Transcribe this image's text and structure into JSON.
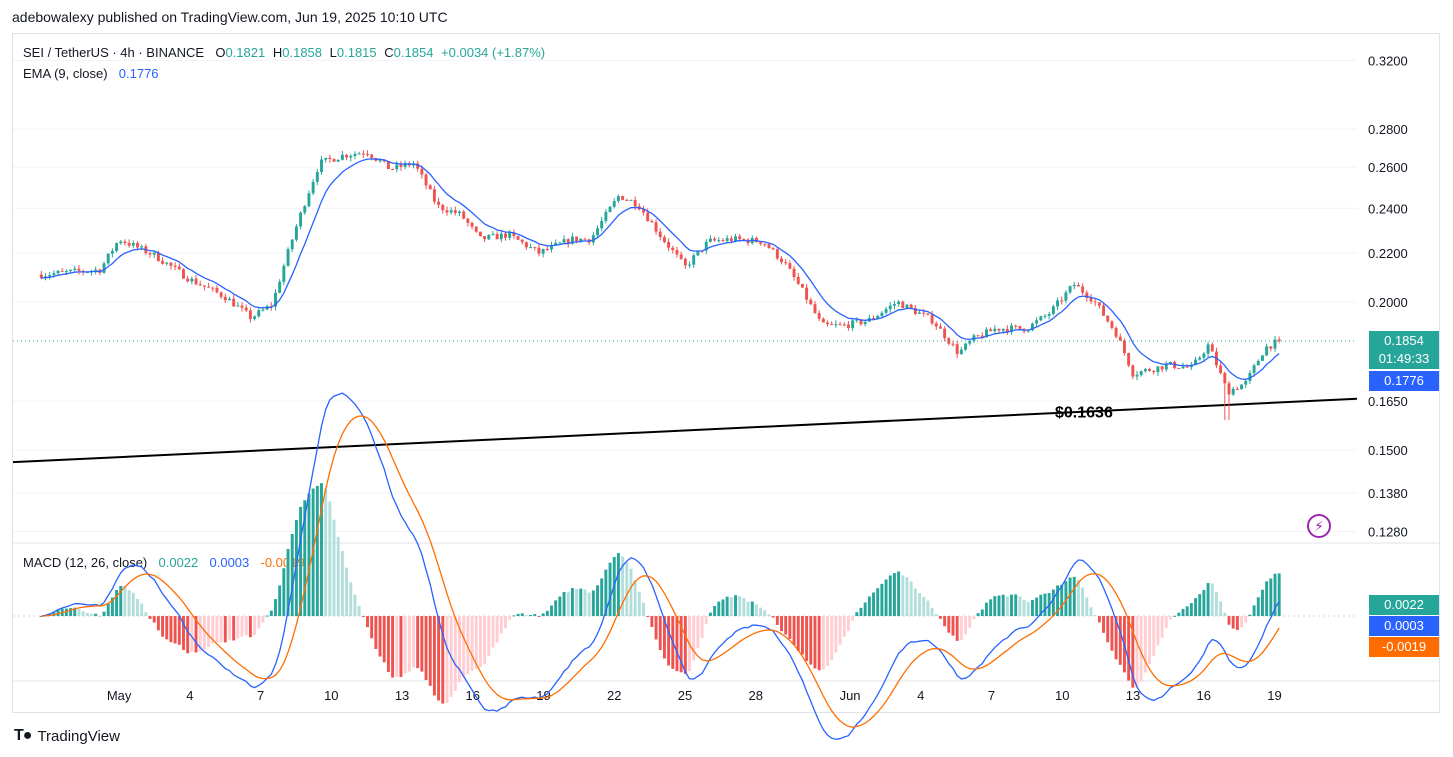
{
  "caption": "adebowalexy published on TradingView.com, Jun 19, 2025 10:10 UTC",
  "legend": {
    "symbol": "SEI / TetherUS · 4h · BINANCE",
    "o_label": "O",
    "o": "0.1821",
    "h_label": "H",
    "h": "0.1858",
    "l_label": "L",
    "l": "0.1815",
    "c_label": "C",
    "c": "0.1854",
    "change": "+0.0034 (+1.87%)",
    "ema_label": "EMA (9, close)",
    "ema": "0.1776",
    "macd_label": "MACD (12, 26, close)",
    "macd_hist": "0.0022",
    "macd_line": "0.0003",
    "macd_signal": "-0.0019"
  },
  "price_tags": {
    "last": "0.1854",
    "countdown": "01:49:33",
    "ema": "0.1776",
    "macd_hist": "0.0022",
    "macd_line": "0.0003",
    "macd_signal": "-0.0019"
  },
  "annotation": "$0.1636",
  "brand": "TradingView",
  "colors": {
    "up": "#26a69a",
    "down": "#ef5350",
    "ema": "#2962ff",
    "signal": "#ff6d00",
    "trendline": "#000000"
  },
  "chart_data": {
    "type": "candlestick",
    "interval": "4h",
    "y_axis_scale": "log",
    "y_ticks": [
      0.32,
      0.28,
      0.26,
      0.24,
      0.22,
      0.2,
      0.165,
      0.15,
      0.138,
      0.128
    ],
    "y_tick_labels": [
      "0.3200",
      "0.2800",
      "0.2600",
      "0.2400",
      "0.2200",
      "0.2000",
      "0.1650",
      "0.1500",
      "0.1380",
      "0.1280"
    ],
    "x_tick_labels": [
      "May",
      "4",
      "7",
      "10",
      "13",
      "16",
      "19",
      "22",
      "25",
      "28",
      "Jun",
      "4",
      "7",
      "10",
      "13",
      "16",
      "19"
    ],
    "x_tick_days": [
      1,
      4,
      7,
      10,
      13,
      16,
      19,
      22,
      25,
      28,
      32,
      35,
      38,
      41,
      44,
      47,
      50
    ],
    "x_units": "days since Apr 30 2025",
    "x_range": [
      -3.5,
      53.5
    ],
    "price_path": {
      "days": [
        -2.3,
        0.2,
        1.0,
        2.5,
        4.0,
        5.5,
        6.6,
        7.5,
        8.5,
        9.5,
        10.5,
        11.5,
        12.5,
        13.5,
        14.5,
        15.5,
        16.3,
        17.5,
        18.8,
        20.2,
        21.0,
        22.2,
        23.0,
        24.0,
        25.0,
        26.0,
        27.0,
        28.3,
        29.2,
        30.0,
        30.8,
        31.7,
        32.8,
        34.0,
        35.5,
        36.6,
        37.2,
        38.2,
        39.5,
        40.5,
        41.5,
        42.3,
        43.3,
        44.0,
        45.5,
        46.5,
        47.2,
        48.0,
        48.8,
        49.6,
        50.2
      ],
      "values": [
        0.211,
        0.213,
        0.226,
        0.219,
        0.209,
        0.202,
        0.194,
        0.199,
        0.231,
        0.262,
        0.266,
        0.268,
        0.259,
        0.262,
        0.241,
        0.237,
        0.226,
        0.228,
        0.22,
        0.226,
        0.226,
        0.246,
        0.242,
        0.227,
        0.214,
        0.225,
        0.226,
        0.225,
        0.216,
        0.204,
        0.191,
        0.191,
        0.193,
        0.2,
        0.193,
        0.181,
        0.186,
        0.19,
        0.19,
        0.196,
        0.207,
        0.201,
        0.188,
        0.174,
        0.177,
        0.176,
        0.184,
        0.168,
        0.171,
        0.183,
        0.1854
      ]
    },
    "ohlc_count": 297,
    "trendline": {
      "x": [
        -3.5,
        53.5
      ],
      "y": [
        0.1465,
        0.1657
      ]
    },
    "annotated_level": 0.1636,
    "last_price": 0.1854,
    "ema_last": 0.1776,
    "macd": {
      "y_range": [
        -0.0045,
        0.005
      ],
      "histogram_last": 0.0022,
      "macd_last": 0.0003,
      "signal_last": -0.0019
    }
  }
}
